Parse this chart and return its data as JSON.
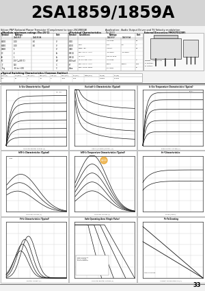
{
  "title": "2SA1859/1859A",
  "subtitle_left": "Silicon PNP Epitaxial Planar Transistor (Complement to type 2SC4883A)",
  "subtitle_right": "Application : Audio Output Driver and TV Velocity modulation",
  "bg_color": "#f0f0f0",
  "page_number": "33",
  "watermark_color": "#a8c4d8",
  "graph_titles_row1": [
    "Ic-Vce Characteristics (Typical)",
    "Vce(sat)-Ic Characteristics (Typical)",
    "Ic-Vce Temperature Characteristics (Typical)"
  ],
  "graph_titles_row2": [
    "hFE-Ic Characteristics (Typical)",
    "hFE-Ic Temperature Characteristics (Typical)",
    "ft-f Characteristics"
  ],
  "graph_titles_row3": [
    "Ft-Ic Characteristics (Typical)",
    "Safe Operating Area (Single Pulse)",
    "Pc-Ta Derating"
  ],
  "graph_xlabels_row1": [
    "Collector-Emitter Voltage (V)",
    "I-Base (Collector/Emitter) (?)",
    "Base-Emitter Voltage (V)"
  ],
  "graph_xlabels_row2": [
    "Collector Current (A)",
    "Collector Current (A)",
    "Probe (Ohms)"
  ],
  "graph_xlabels_row3": [
    "Emitter Current (A)",
    "Collector-Emitter Voltage (V)",
    "Ambient Temperature Ta (C)"
  ]
}
